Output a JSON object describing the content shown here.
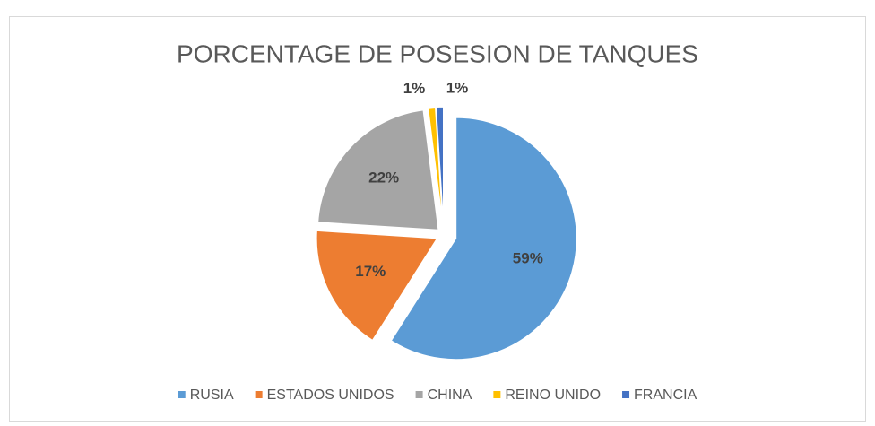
{
  "chart_data": {
    "type": "pie",
    "title": "PORCENTAGE DE POSESION DE TANQUES",
    "categories": [
      "RUSIA",
      "ESTADOS UNIDOS",
      "CHINA",
      "REINO UNIDO",
      "FRANCIA"
    ],
    "values": [
      59,
      17,
      22,
      1,
      1
    ],
    "value_labels": [
      "59%",
      "17%",
      "22%",
      "1%",
      "1%"
    ],
    "colors": [
      "#5b9bd5",
      "#ed7d31",
      "#a5a5a5",
      "#ffc000",
      "#4472c4"
    ],
    "legend": "bottom"
  }
}
